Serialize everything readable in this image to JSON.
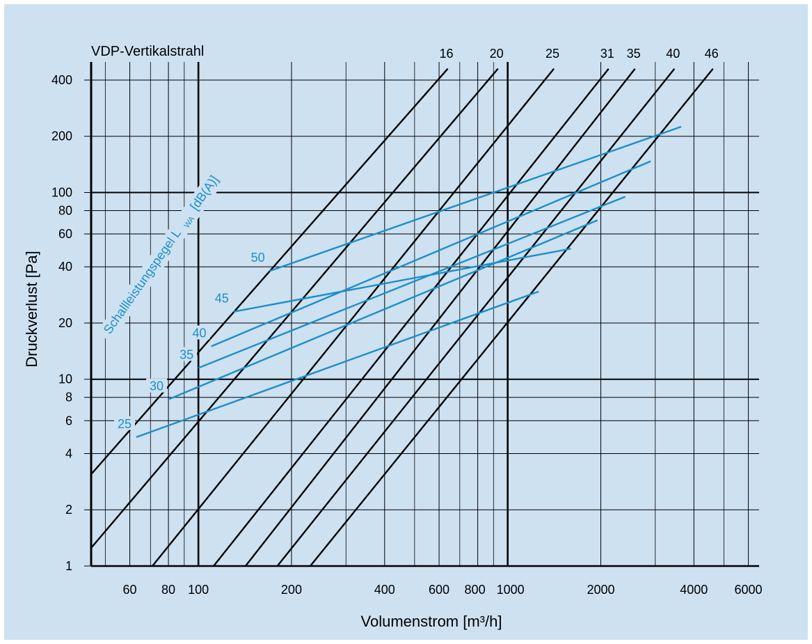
{
  "chart_data": {
    "type": "line",
    "title": "VDP-Vertikalstrahl",
    "xlabel": "Volumenstrom [m³/h]",
    "ylabel": "Druckverlust [Pa]",
    "xscale": "log",
    "yscale": "log",
    "xlim": [
      45,
      6500
    ],
    "ylim": [
      1,
      500
    ],
    "grid": true,
    "x_ticks": [
      60,
      80,
      100,
      200,
      400,
      600,
      800,
      1000,
      2000,
      4000,
      6000
    ],
    "x_tick_labels": [
      "60",
      "80",
      "100",
      "200",
      "400",
      "600",
      "800",
      "1000",
      "2000",
      "4000",
      "6000"
    ],
    "y_ticks": [
      1,
      2,
      4,
      6,
      8,
      10,
      20,
      40,
      60,
      80,
      100,
      200,
      400
    ],
    "y_tick_labels": [
      "1",
      "2",
      "4",
      "6",
      "8",
      "10",
      "20",
      "40",
      "60",
      "80",
      "100",
      "200",
      "400"
    ],
    "size_lines": [
      {
        "name": "16",
        "x": [
          45,
          640
        ],
        "y": [
          3.1,
          460
        ]
      },
      {
        "name": "20",
        "x": [
          45,
          930
        ],
        "y": [
          1.25,
          460
        ]
      },
      {
        "name": "25",
        "x": [
          71,
          1410
        ],
        "y": [
          1,
          460
        ]
      },
      {
        "name": "31",
        "x": [
          112,
          2120
        ],
        "y": [
          1,
          460
        ]
      },
      {
        "name": "35",
        "x": [
          142,
          2580
        ],
        "y": [
          1,
          460
        ]
      },
      {
        "name": "40",
        "x": [
          180,
          3460
        ],
        "y": [
          1,
          460
        ]
      },
      {
        "name": "46",
        "x": [
          230,
          4610
        ],
        "y": [
          1,
          460
        ]
      }
    ],
    "sound_power_lines": [
      {
        "name": "25",
        "x": [
          63,
          1260
        ],
        "y": [
          4.9,
          29.5
        ]
      },
      {
        "name": "30",
        "x": [
          80,
          1950
        ],
        "y": [
          7.8,
          71
        ]
      },
      {
        "name": "35",
        "x": [
          100,
          2400
        ],
        "y": [
          11.5,
          95
        ]
      },
      {
        "name": "40",
        "x": [
          110,
          2900
        ],
        "y": [
          15,
          147
        ]
      },
      {
        "name": "45",
        "x": [
          130,
          1600
        ],
        "y": [
          23,
          50
        ]
      },
      {
        "name": "50",
        "x": [
          170,
          3640
        ],
        "y": [
          38,
          225
        ]
      }
    ],
    "sound_power_axis_label": "Schallleistungspegel L",
    "sound_power_axis_sub": "WA",
    "sound_power_axis_unit": "[dB(A)]",
    "colors": {
      "background": "#cde1f1",
      "size_lines": "#000000",
      "sound_lines": "#1c8ec9",
      "grid": "#000000"
    }
  }
}
